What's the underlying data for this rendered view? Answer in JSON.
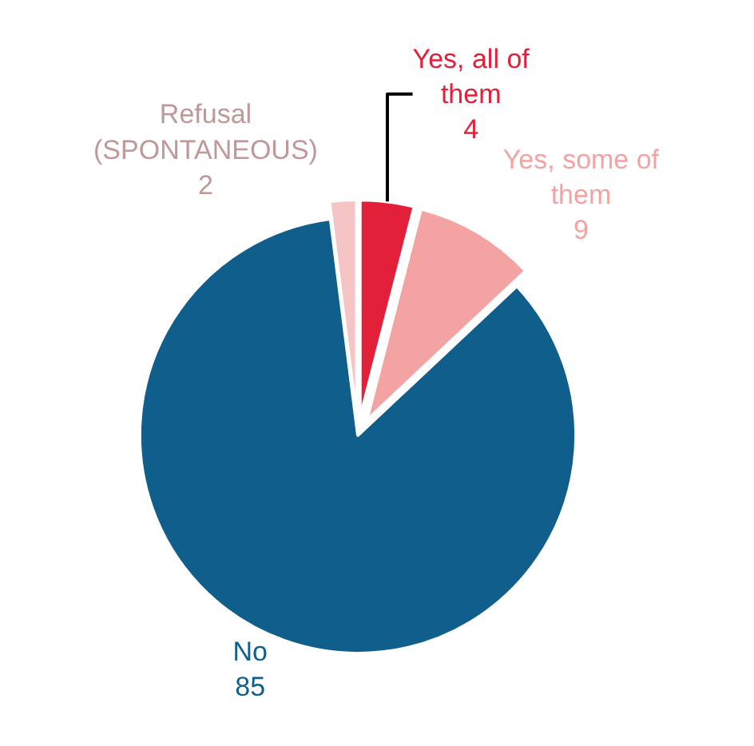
{
  "chart_data": {
    "type": "pie",
    "categories": [
      "Yes, all of them",
      "Yes, some of them",
      "No",
      "Refusal (SPONTANEOUS)"
    ],
    "values": [
      4,
      9,
      85,
      2
    ],
    "colors": [
      "#e3203a",
      "#f4a3a3",
      "#0f5e8c",
      "#f5c4c4"
    ],
    "data_labels": true,
    "legend": false
  }
}
